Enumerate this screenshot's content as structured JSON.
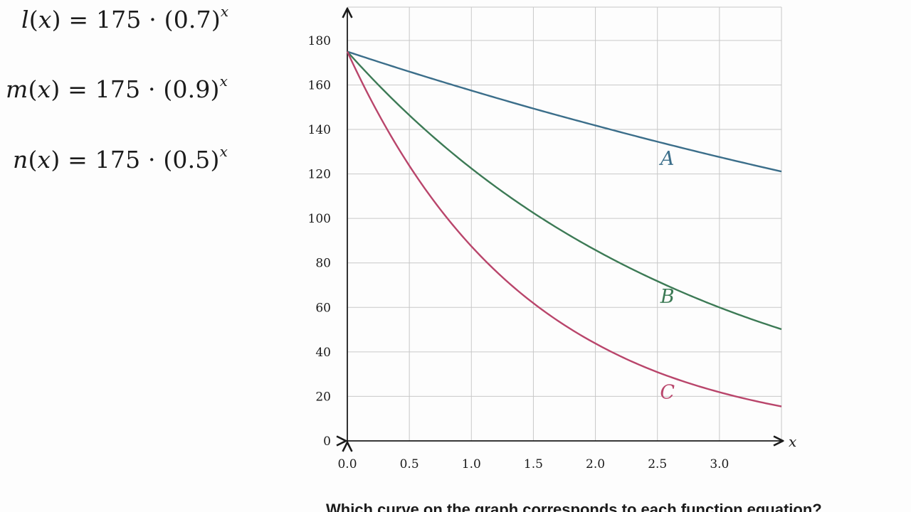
{
  "equations": {
    "l": {
      "name": "l",
      "var": "x",
      "coef": "175",
      "base": "0.7",
      "exp": "x"
    },
    "m": {
      "name": "m",
      "var": "x",
      "coef": "175",
      "base": "0.9",
      "exp": "x"
    },
    "n": {
      "name": "n",
      "var": "x",
      "coef": "175",
      "base": "0.5",
      "exp": "x"
    }
  },
  "question": "Which curve on the graph corresponds to each function equation?",
  "colors": {
    "background": "#fdfdfd",
    "grid": "#c8c8c8",
    "axis": "#1b1b1b",
    "text": "#1b1b1b",
    "curve_a": "#3b6e8a",
    "curve_b": "#3c7a55",
    "curve_c": "#b9456b"
  },
  "chart_data": {
    "type": "line",
    "xlabel": "x",
    "ylabel": "",
    "xlim": [
      0,
      3.5
    ],
    "ylim": [
      0,
      195
    ],
    "grid": true,
    "x_ticks": [
      0,
      0.5,
      1,
      1.5,
      2,
      2.5,
      3
    ],
    "x_tick_labels": [
      "0.0",
      "0.5",
      "1.0",
      "1.5",
      "2.0",
      "2.5",
      "3.0"
    ],
    "y_ticks": [
      0,
      20,
      40,
      60,
      80,
      100,
      120,
      140,
      160,
      180
    ],
    "y_tick_labels": [
      "0",
      "20",
      "40",
      "60",
      "80",
      "100",
      "120",
      "140",
      "160",
      "180"
    ],
    "x": [
      0,
      0.5,
      1,
      1.5,
      2,
      2.5,
      3,
      3.5
    ],
    "series": [
      {
        "name": "A",
        "values": [
          175,
          166,
          157.5,
          149.4,
          141.8,
          134.5,
          127.6,
          121.1
        ],
        "color_key": "curve_a",
        "label_at": {
          "x": 2.58,
          "y": 124
        }
      },
      {
        "name": "B",
        "values": [
          175,
          146.4,
          122.5,
          102.5,
          85.8,
          71.8,
          60,
          50.2
        ],
        "color_key": "curve_b",
        "label_at": {
          "x": 2.58,
          "y": 62
        }
      },
      {
        "name": "C",
        "values": [
          175,
          123.7,
          87.5,
          61.9,
          43.8,
          30.9,
          21.9,
          15.5
        ],
        "color_key": "curve_c",
        "label_at": {
          "x": 2.58,
          "y": 19
        }
      }
    ]
  }
}
